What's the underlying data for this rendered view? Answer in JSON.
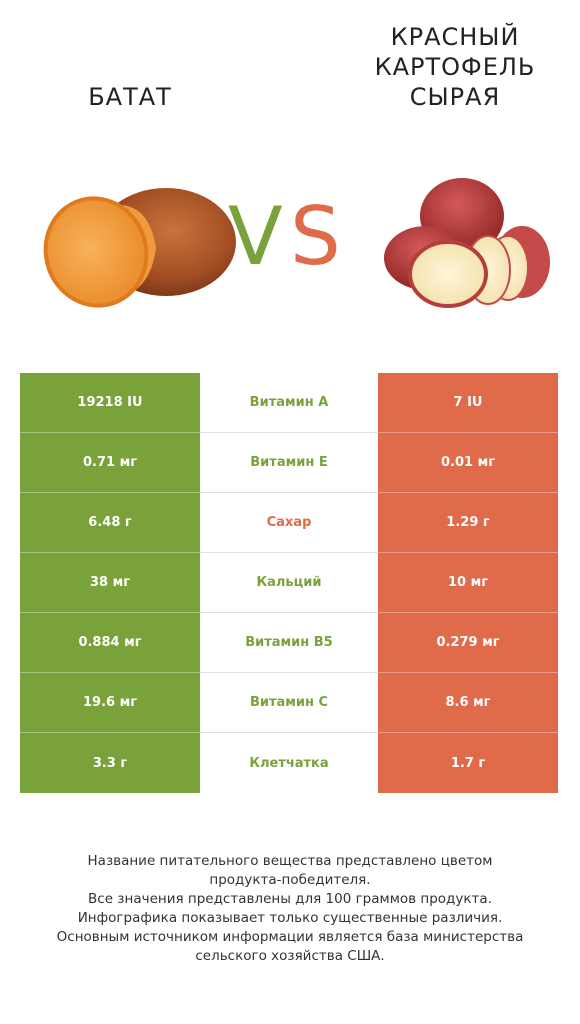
{
  "header": {
    "left_title": "БАТАТ",
    "right_title": "КРАСНЫЙ\nКАРТОФЕЛЬ\nСЫРАЯ",
    "vs_v": "V",
    "vs_s": "S"
  },
  "colors": {
    "left": "#7aa23b",
    "right": "#e06b4b"
  },
  "rows": [
    {
      "left": "19218 IU",
      "nutrient": "Витамин A",
      "right": "7 IU",
      "winner": "left"
    },
    {
      "left": "0.71 мг",
      "nutrient": "Витамин E",
      "right": "0.01 мг",
      "winner": "left"
    },
    {
      "left": "6.48 г",
      "nutrient": "Сахар",
      "right": "1.29 г",
      "winner": "right"
    },
    {
      "left": "38 мг",
      "nutrient": "Кальций",
      "right": "10 мг",
      "winner": "left"
    },
    {
      "left": "0.884 мг",
      "nutrient": "Витамин B5",
      "right": "0.279 мг",
      "winner": "left"
    },
    {
      "left": "19.6 мг",
      "nutrient": "Витамин C",
      "right": "8.6 мг",
      "winner": "left"
    },
    {
      "left": "3.3 г",
      "nutrient": "Клетчатка",
      "right": "1.7 г",
      "winner": "left"
    }
  ],
  "footnote": {
    "line1": "Название питательного вещества представлено цветом\nпродукта-победителя.",
    "line2": "Все значения представлены для 100 граммов продукта.",
    "line3": "Инфографика показывает только существенные различия.",
    "line4": "Основным источником информации является база министерства\nсельского хозяйства США."
  }
}
